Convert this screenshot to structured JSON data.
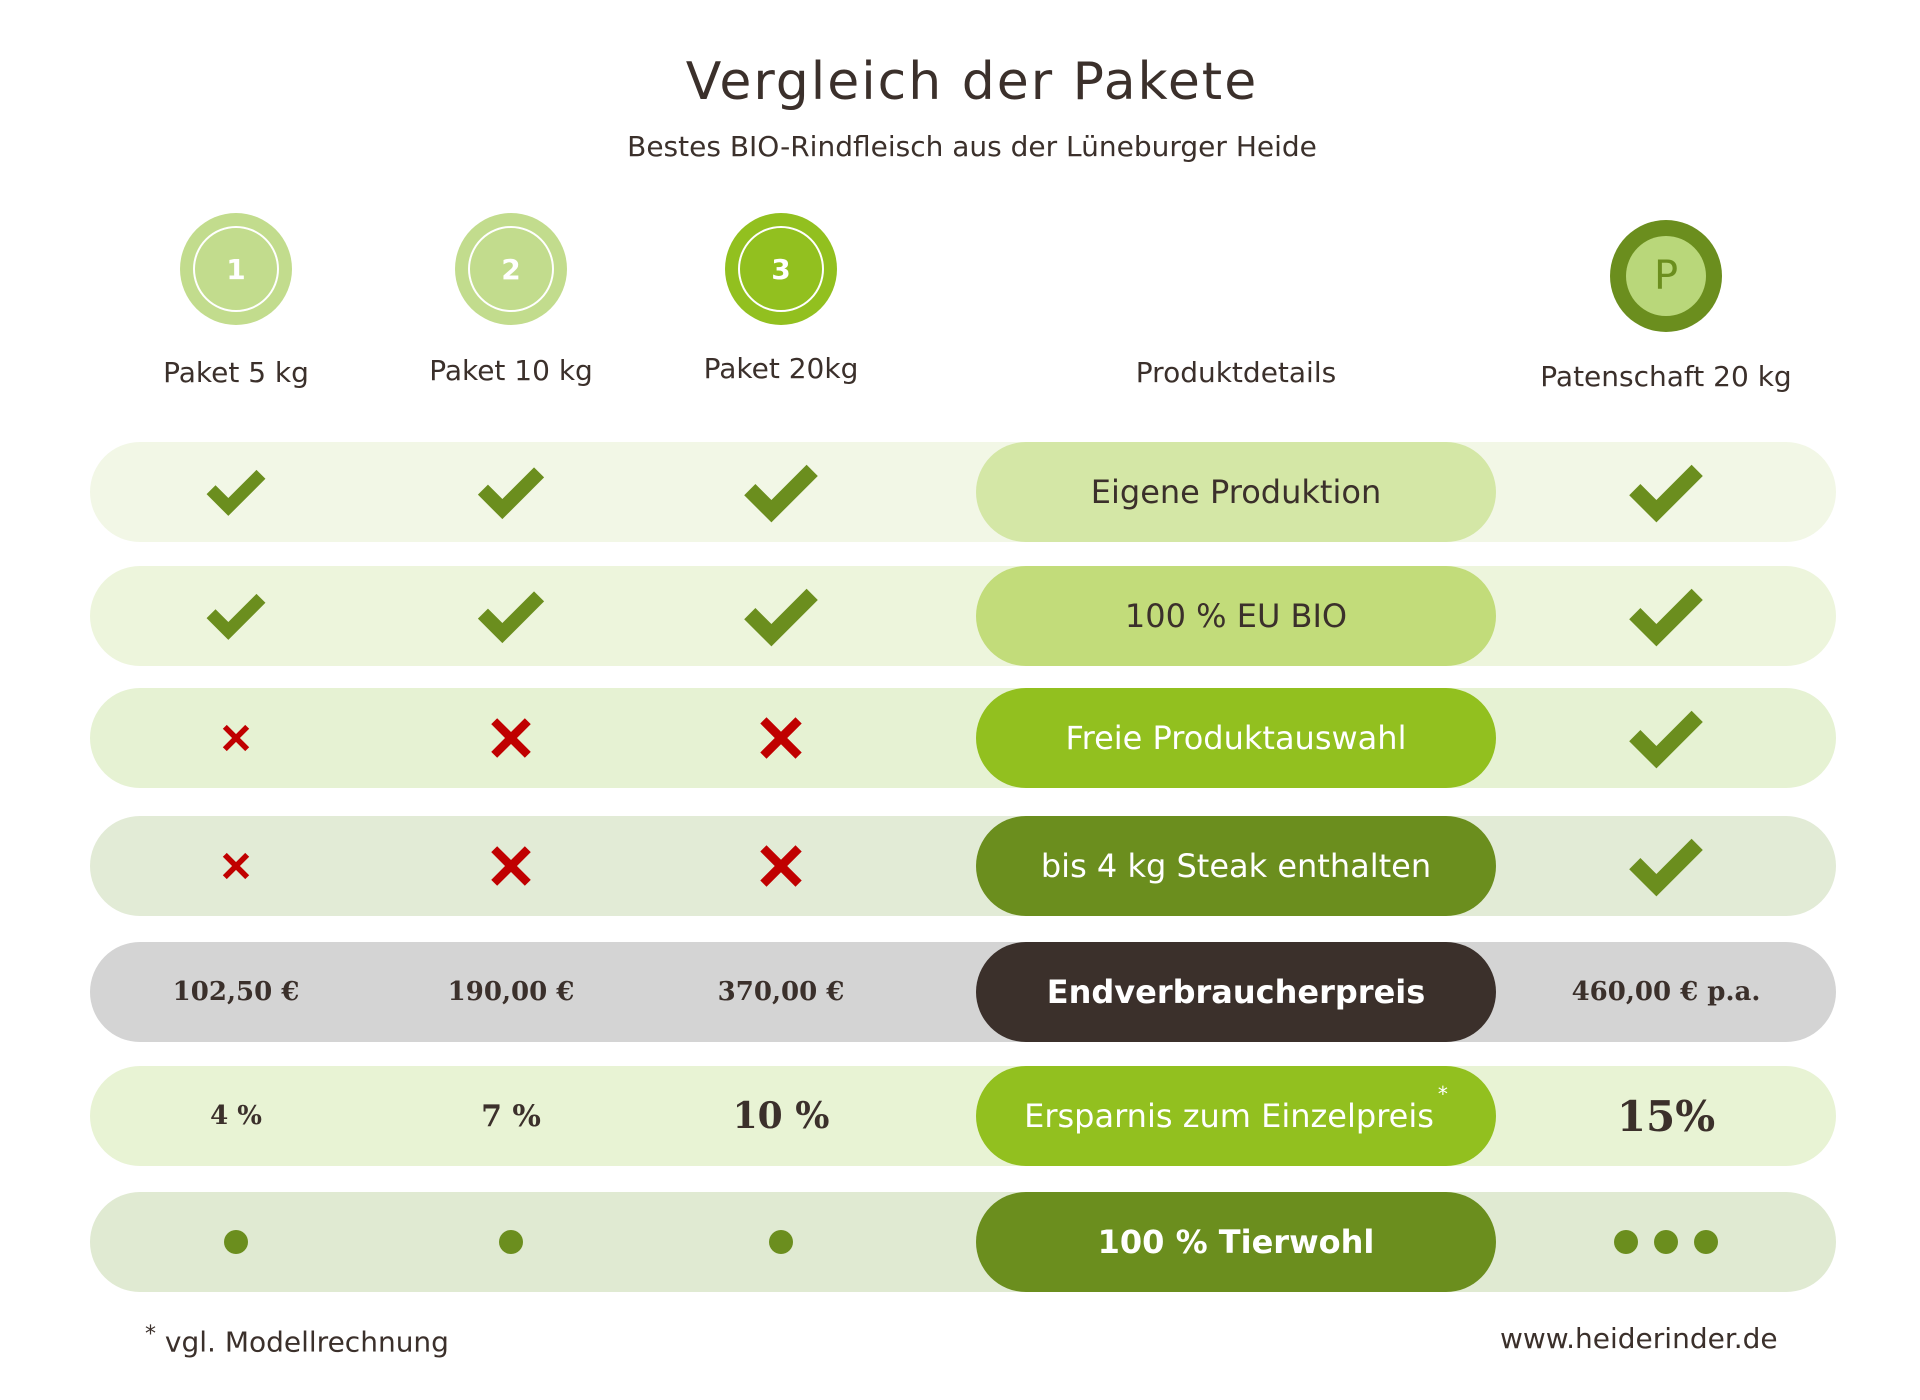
{
  "title": "Vergleich der Pakete",
  "subtitle": "Bestes BIO-Rindfleisch aus der Lüneburger Heide",
  "packages": [
    {
      "icon_label": "1",
      "name": "Paket 5 kg"
    },
    {
      "icon_label": "2",
      "name": "Paket 10 kg"
    },
    {
      "icon_label": "3",
      "name": "Paket 20kg"
    },
    {
      "icon_label": "P",
      "name": "Patenschaft 20 kg"
    }
  ],
  "details_header": "Produktdetails",
  "rows": [
    {
      "label": "Eigene Produktion",
      "values": [
        "check",
        "check",
        "check",
        "check"
      ]
    },
    {
      "label": "100 % EU BIO",
      "values": [
        "check",
        "check",
        "check",
        "check"
      ]
    },
    {
      "label": "Freie Produktauswahl",
      "values": [
        "cross",
        "cross",
        "cross",
        "check"
      ]
    },
    {
      "label": "bis 4 kg Steak enthalten",
      "values": [
        "cross",
        "cross",
        "cross",
        "check"
      ]
    },
    {
      "label": "Endverbraucherpreis",
      "values": [
        "102,50 €",
        "190,00 €",
        "370,00 €",
        "460,00 €  p.a."
      ]
    },
    {
      "label": "Ersparnis zum Einzelpreis",
      "marker": "*",
      "values": [
        "4 %",
        "7 %",
        "10 %",
        "15%"
      ]
    },
    {
      "label": "100 % Tierwohl",
      "values": [
        1,
        1,
        1,
        3
      ]
    }
  ],
  "footnote": {
    "marker": "*",
    "text": "vgl. Modellrechnung"
  },
  "website": "www.heiderinder.de",
  "colors": {
    "dark_green": "#6b8e1e",
    "lime": "#92c01f",
    "light_green": "#c2dc8d",
    "cross_red": "#c00000",
    "dark_brown": "#3b302b"
  }
}
